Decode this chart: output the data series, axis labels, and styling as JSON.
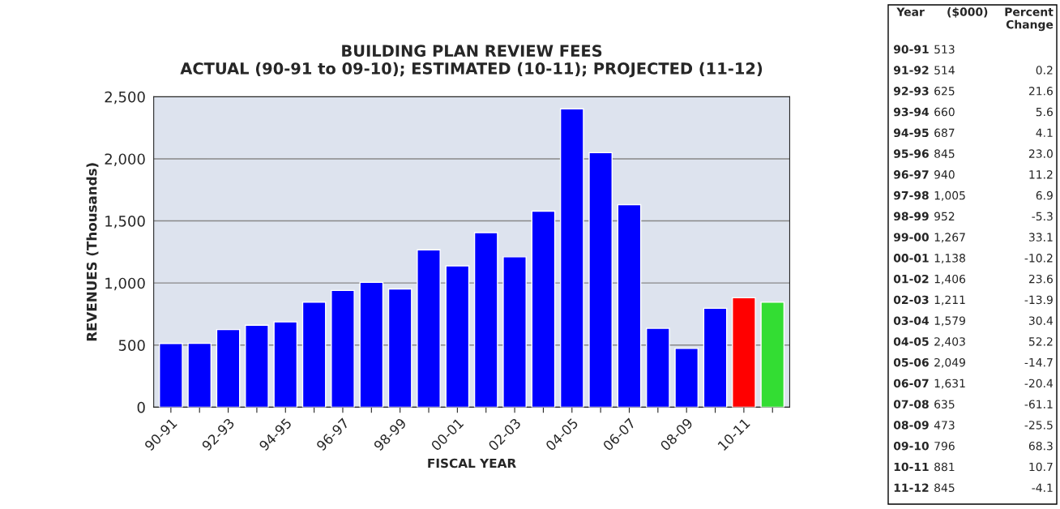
{
  "chart_data": [
    {
      "type": "bar",
      "title": "BUILDING PLAN REVIEW FEES\nACTUAL (90-91 to 09-10); ESTIMATED (10-11); PROJECTED (11-12)",
      "xlabel": "FISCAL YEAR",
      "ylabel": "REVENUES (Thousands)",
      "categories": [
        "90-91",
        null,
        "92-93",
        null,
        "94-95",
        null,
        "96-97",
        null,
        "98-99",
        null,
        "00-01",
        null,
        "02-03",
        null,
        "04-05",
        null,
        "06-07",
        null,
        "08-09",
        null,
        "10-11",
        null
      ],
      "values": [
        513,
        514,
        625,
        660,
        687,
        845,
        940,
        1005,
        952,
        1267,
        1138,
        1406,
        1211,
        1579,
        2403,
        2049,
        1631,
        635,
        473,
        796,
        881,
        845
      ],
      "colors": [
        "#0000ff",
        "#0000ff",
        "#0000ff",
        "#0000ff",
        "#0000ff",
        "#0000ff",
        "#0000ff",
        "#0000ff",
        "#0000ff",
        "#0000ff",
        "#0000ff",
        "#0000ff",
        "#0000ff",
        "#0000ff",
        "#0000ff",
        "#0000ff",
        "#0000ff",
        "#0000ff",
        "#0000ff",
        "#0000ff",
        "#ff0000",
        "#33dd33"
      ],
      "ylim": [
        0,
        2500
      ],
      "yticks": [
        0,
        500,
        {
          "value": 1000,
          "label": "1,000"
        },
        {
          "value": 1500,
          "label": "1,500"
        },
        {
          "value": 2000,
          "label": "2,000"
        },
        {
          "value": 2500,
          "label": "2,500"
        }
      ],
      "grid": "y"
    },
    {
      "type": "other",
      "categories": [
        "90-91",
        "91-92",
        "92-93",
        "93-94",
        "94-95",
        "95-96",
        "96-97",
        "97-98",
        "98-99",
        "99-00",
        "00-01",
        "01-02",
        "02-03",
        "03-04",
        "04-05",
        "05-06",
        "06-07",
        "07-08",
        "08-09",
        "09-10",
        "10-11",
        "11-12"
      ],
      "value_labels": [
        "513",
        "514",
        "625",
        "660",
        "687",
        "845",
        "940",
        "1,005",
        "952",
        "1,267",
        "1,138",
        "1,406",
        "1,211",
        "1,579",
        "2,403",
        "2,049",
        "1,631",
        "635",
        "473",
        "796",
        "881",
        "845"
      ],
      "annotations": [
        "Year",
        "($000)",
        "Percent\nChange",
        "0.2",
        "21.6",
        "5.6",
        "4.1",
        "23.0",
        "11.2",
        "6.9",
        "-5.3",
        "33.1",
        "-10.2",
        "23.6",
        "-13.9",
        "30.4",
        "52.2",
        "-14.7",
        "-20.4",
        "-61.1",
        "-25.5",
        "68.3",
        "10.7",
        "-4.1"
      ]
    }
  ]
}
